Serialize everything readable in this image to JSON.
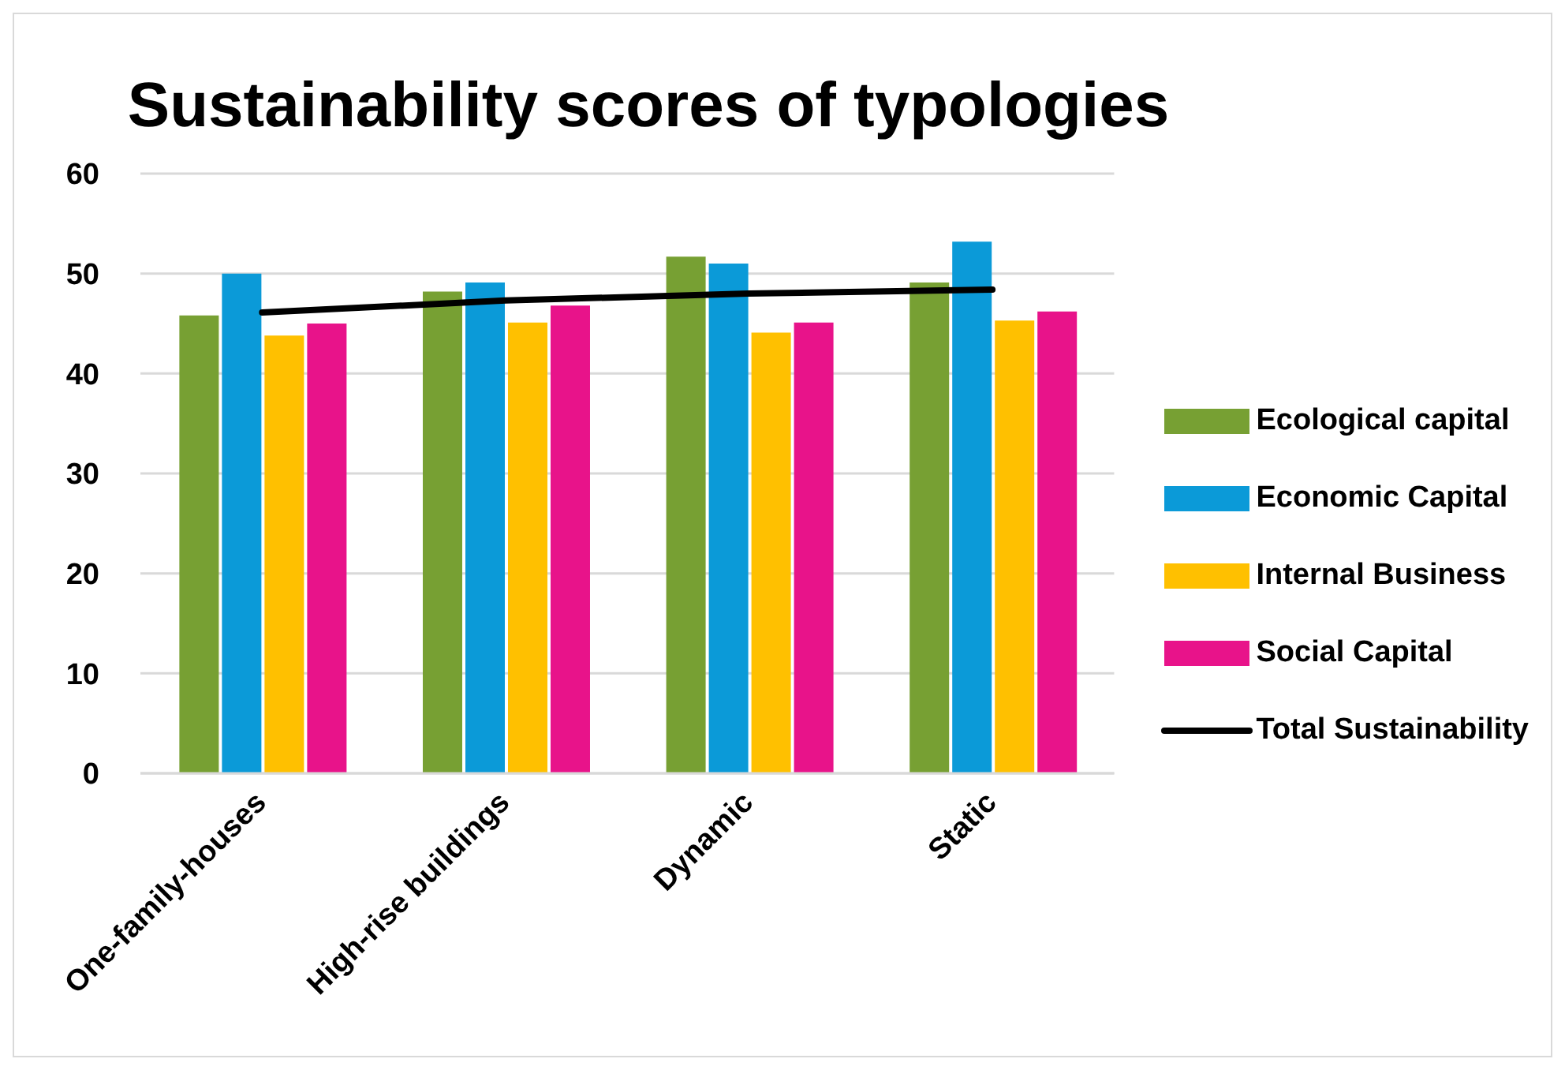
{
  "chart_data": {
    "type": "bar",
    "title": "Sustainability scores of typologies",
    "categories": [
      "One-family-houses",
      "High-rise buildings",
      "Dynamic",
      "Static"
    ],
    "series": [
      {
        "name": "Ecological capital",
        "color": "#77a033",
        "values": [
          45.8,
          48.2,
          51.7,
          49.1
        ]
      },
      {
        "name": "Economic Capital",
        "color": "#0b9ad8",
        "values": [
          50,
          49.1,
          51,
          53.2
        ]
      },
      {
        "name": "Internal Business",
        "color": "#ffc000",
        "values": [
          43.8,
          45.1,
          44.1,
          45.3
        ]
      },
      {
        "name": "Social Capital",
        "color": "#e8138a",
        "values": [
          45,
          46.8,
          45.1,
          46.2
        ]
      },
      {
        "name": "Total Sustainability",
        "type": "line",
        "color": "#000000",
        "values": [
          46.1,
          47.3,
          48,
          48.4
        ]
      }
    ],
    "ylim": [
      0,
      60
    ],
    "yticks": [
      0,
      10,
      20,
      30,
      40,
      50,
      60
    ],
    "grid": "y",
    "legend": "right",
    "marker": "none"
  }
}
